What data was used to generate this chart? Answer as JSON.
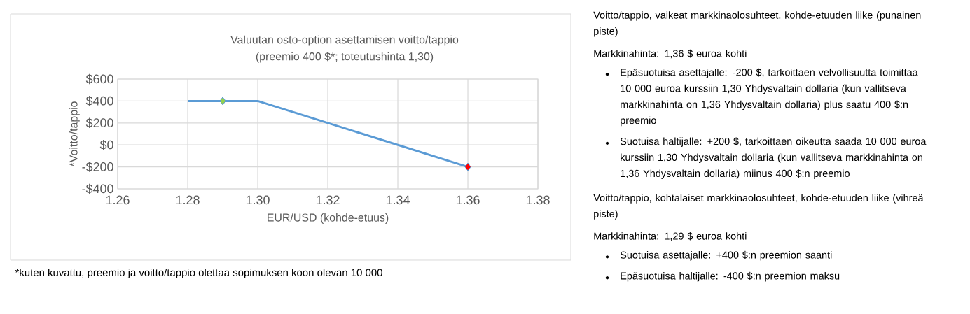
{
  "chart_data": [
    {
      "type": "line",
      "title": "Valuutan osto-option asettamisen voitto/tappio",
      "subtitle": "(preemio 400 $*; toteutushinta 1,30)",
      "xlabel": "EUR/USD (kohde-etuus)",
      "ylabel": "*Voitto/tappio",
      "series": [
        {
          "type": "line",
          "color": "#5b9bd5",
          "marker": "none",
          "x": [
            1.28,
            1.3,
            1.36
          ],
          "values": [
            400,
            400,
            -200
          ]
        },
        {
          "type": "scatter",
          "marker": "diamond",
          "colors": [
            "#92d050",
            "#ff0000"
          ],
          "x": [
            1.29,
            1.36
          ],
          "values": [
            400,
            -200
          ]
        }
      ],
      "xlim": [
        1.26,
        1.38
      ],
      "xticks": [
        {
          "value": 1.26,
          "label": "1.26"
        },
        {
          "value": 1.28,
          "label": "1.28"
        },
        {
          "value": 1.3,
          "label": "1.30"
        },
        {
          "value": 1.32,
          "label": "1.32"
        },
        {
          "value": 1.34,
          "label": "1.34"
        },
        {
          "value": 1.36,
          "label": "1.36"
        },
        {
          "value": 1.38,
          "label": "1.38"
        }
      ],
      "ylim": [
        -400,
        600
      ],
      "yticks": [
        {
          "value": -400,
          "label": "-$400"
        },
        {
          "value": -200,
          "label": "-$200"
        },
        {
          "value": 0,
          "label": "$0"
        },
        {
          "value": 200,
          "label": "$200"
        },
        {
          "value": 400,
          "label": "$400"
        },
        {
          "value": 600,
          "label": "$600"
        }
      ],
      "grid": true,
      "annotations": [
        "*kuten kuvattu, preemio ja voitto/tappio olettaa sopimuksen koon olevan 10 000"
      ]
    },
    {
      "type": "other",
      "annotations": [
        "Voitto/tappio, vaikeat markkinaolosuhteet, kohde-etuuden liike (punainen piste)",
        "Markkinahinta: 1,36 $ euroa kohti",
        "Epäsuotuisa asettajalle: -200 $, tarkoittaen velvollisuutta toimittaa 10 000 euroa kurssiin 1,30 Yhdysvaltain dollaria (kun vallitseva markkinahinta on 1,36 Yhdysvaltain dollaria) plus saatu 400 $:n preemio",
        "Suotuisa haltijalle: +200 $, tarkoittaen oikeutta saada 10 000 euroa kurssiin 1,30 Yhdysvaltain dollaria (kun vallitseva markkinahinta on 1,36 Yhdysvaltain dollaria) miinus 400 $:n preemio",
        "Voitto/tappio, kohtalaiset markkinaolosuhteet, kohde-etuuden liike (vihreä piste)",
        "Markkinahinta: 1,29 $ euroa kohti",
        "Suotuisa asettajalle: +400 $:n preemion saanti",
        "Epäsuotuisa haltijalle: -400 $:n preemion maksu"
      ]
    }
  ]
}
